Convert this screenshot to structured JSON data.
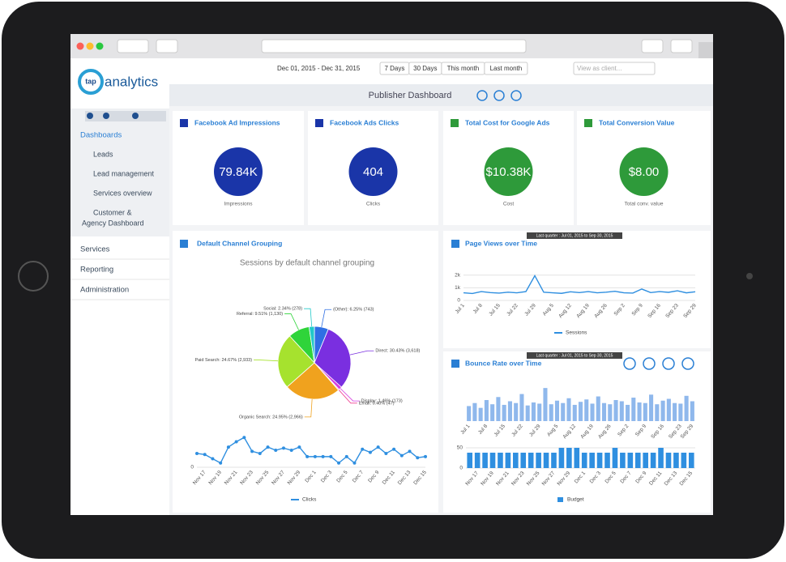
{
  "logo": {
    "mark": "tap",
    "name": "analytics"
  },
  "menu": [
    "Dashboards",
    "Leads",
    "Lead management",
    "Services overview",
    [
      "Customer &",
      "Agency Dashboard"
    ],
    "Services",
    "Reporting",
    "Administration"
  ],
  "toolbar": {
    "date_range": "Dec 01, 2015 - Dec 31, 2015",
    "ranges": [
      "7 Days",
      "30 Days",
      "This month",
      "Last month"
    ],
    "client_placeholder": "View as client..."
  },
  "dashboard_title": "Publisher Dashboard",
  "kpis": [
    {
      "title": "Facebook Ad Impressions",
      "value": "79.84K",
      "label": "Impressions",
      "color": "#1a35a8"
    },
    {
      "title": "Facebook Ads Clicks",
      "value": "404",
      "label": "Clicks",
      "color": "#1a35a8"
    },
    {
      "title": "Total Cost for Google Ads",
      "value": "$10.38K",
      "label": "Cost",
      "color": "#2e9a3a"
    },
    {
      "title": "Total Conversion Value",
      "value": "$8.00",
      "label": "Total conv. value",
      "color": "#2e9a3a"
    }
  ],
  "channel": {
    "title": "Default Channel Grouping",
    "subtitle": "Sessions by default channel grouping",
    "pie": {
      "type": "pie",
      "categories": [
        "(Other)",
        "Direct",
        "Display",
        "Email",
        "Organic Search",
        "Paid Search",
        "Referral",
        "Social"
      ],
      "values": [
        6.25,
        30.43,
        1.46,
        0.4,
        24.95,
        24.67,
        9.51,
        2.34
      ],
      "value_labels": [
        "(Other): 6.25% (743)",
        "Direct: 30.43% (3,618)",
        "Display: 1.46% (173)",
        "Email: 0.40% (47)",
        "Organic Search: 24.95% (2,966)",
        "Paid Search: 24.67% (2,933)",
        "Referral: 9.51% (1,130)",
        "Social: 2.34% (278)"
      ],
      "colors": [
        "#2f6fe4",
        "#7a2fe0",
        "#d63ee0",
        "#f04090",
        "#f0a21e",
        "#a6e22e",
        "#2fd43a",
        "#22c9c9"
      ]
    },
    "clicks": {
      "type": "line",
      "categories": [
        null,
        "Nov 17",
        null,
        "Nov 19",
        null,
        "Nov 21",
        null,
        "Nov 23",
        null,
        "Nov 25",
        null,
        "Nov 27",
        null,
        "Nov 29",
        null,
        "Dec 1",
        null,
        "Dec 3",
        null,
        "Dec 5",
        null,
        "Dec 7",
        null,
        "Dec 9",
        null,
        "Dec 11",
        null,
        "Dec 13",
        null,
        "Dec 15"
      ],
      "values": [
        13,
        12,
        8,
        4,
        19,
        24,
        28,
        15,
        13,
        19,
        16,
        18,
        16,
        19,
        10,
        10,
        10,
        10,
        4,
        10,
        4,
        17,
        14,
        19,
        13,
        17,
        11,
        15,
        9,
        10
      ],
      "ylim": [
        0,
        32
      ],
      "yticks": [
        0
      ],
      "legend": "Clicks",
      "color": "#2f8fe0"
    }
  },
  "pageviews": {
    "title": "Page Views over Time",
    "badge": "Last quarter : Jul 01, 2015 to Sep 30, 2015",
    "chart": {
      "type": "line",
      "categories": [
        "Jul 1",
        null,
        "Jul 8",
        null,
        "Jul 15",
        null,
        "Jul 22",
        null,
        "Jul 29",
        null,
        "Aug 5",
        null,
        "Aug 12",
        null,
        "Aug 19",
        null,
        "Aug 26",
        null,
        "Sep 2",
        null,
        "Sep 9",
        null,
        "Sep 16",
        null,
        "Sep 23",
        null,
        "Sep 29"
      ],
      "values": [
        600,
        550,
        700,
        620,
        580,
        650,
        600,
        700,
        1950,
        650,
        600,
        560,
        680,
        620,
        700,
        600,
        650,
        720,
        600,
        580,
        900,
        620,
        700,
        640,
        760,
        600,
        680
      ],
      "ylim": [
        0,
        2300
      ],
      "yticks": [
        0,
        {
          "value": 1000,
          "label": "1k"
        },
        {
          "value": 2000,
          "label": "2k"
        }
      ],
      "legend": "Sessions",
      "color": "#2f8fe0"
    }
  },
  "bounce": {
    "title": "Bounce Rate over Time",
    "badge": "Last quarter : Jul 01, 2015 to Sep 30, 2015",
    "rate": {
      "type": "bar",
      "categories": [
        "Jul 1",
        null,
        null,
        "Jul 8",
        null,
        null,
        "Jul 15",
        null,
        null,
        "Jul 22",
        null,
        null,
        "Jul 29",
        null,
        null,
        "Aug 5",
        null,
        null,
        "Aug 12",
        null,
        null,
        "Aug 19",
        null,
        null,
        "Aug 26",
        null,
        null,
        "Sep 2",
        null,
        null,
        "Sep 9",
        null,
        null,
        "Sep 16",
        null,
        null,
        "Sep 23",
        null,
        "Sep 29"
      ],
      "values": [
        25,
        30,
        22,
        35,
        28,
        40,
        27,
        33,
        30,
        45,
        26,
        31,
        29,
        55,
        28,
        34,
        30,
        38,
        27,
        32,
        36,
        29,
        41,
        30,
        28,
        35,
        33,
        27,
        39,
        31,
        30,
        44,
        28,
        34,
        37,
        30,
        29,
        42,
        33
      ],
      "ylim": [
        0,
        70
      ],
      "color": "#8fb8ec"
    },
    "budget": {
      "type": "bar",
      "categories": [
        null,
        "Nov 17",
        null,
        "Nov 19",
        null,
        "Nov 21",
        null,
        "Nov 23",
        null,
        "Nov 25",
        null,
        "Nov 27",
        null,
        "Nov 29",
        null,
        "Dec 1",
        null,
        "Dec 3",
        null,
        "Dec 5",
        null,
        "Dec 7",
        null,
        "Dec 9",
        null,
        "Dec 11",
        null,
        "Dec 13",
        null,
        "Dec 15"
      ],
      "values": [
        38,
        38,
        38,
        38,
        38,
        38,
        38,
        38,
        38,
        38,
        38,
        38,
        50,
        50,
        50,
        38,
        38,
        38,
        38,
        50,
        38,
        38,
        38,
        38,
        38,
        50,
        38,
        38,
        38,
        38
      ],
      "ylim": [
        0,
        60
      ],
      "yticks": [
        0,
        50
      ],
      "legend": "Budget",
      "color": "#2f8fe0"
    }
  }
}
